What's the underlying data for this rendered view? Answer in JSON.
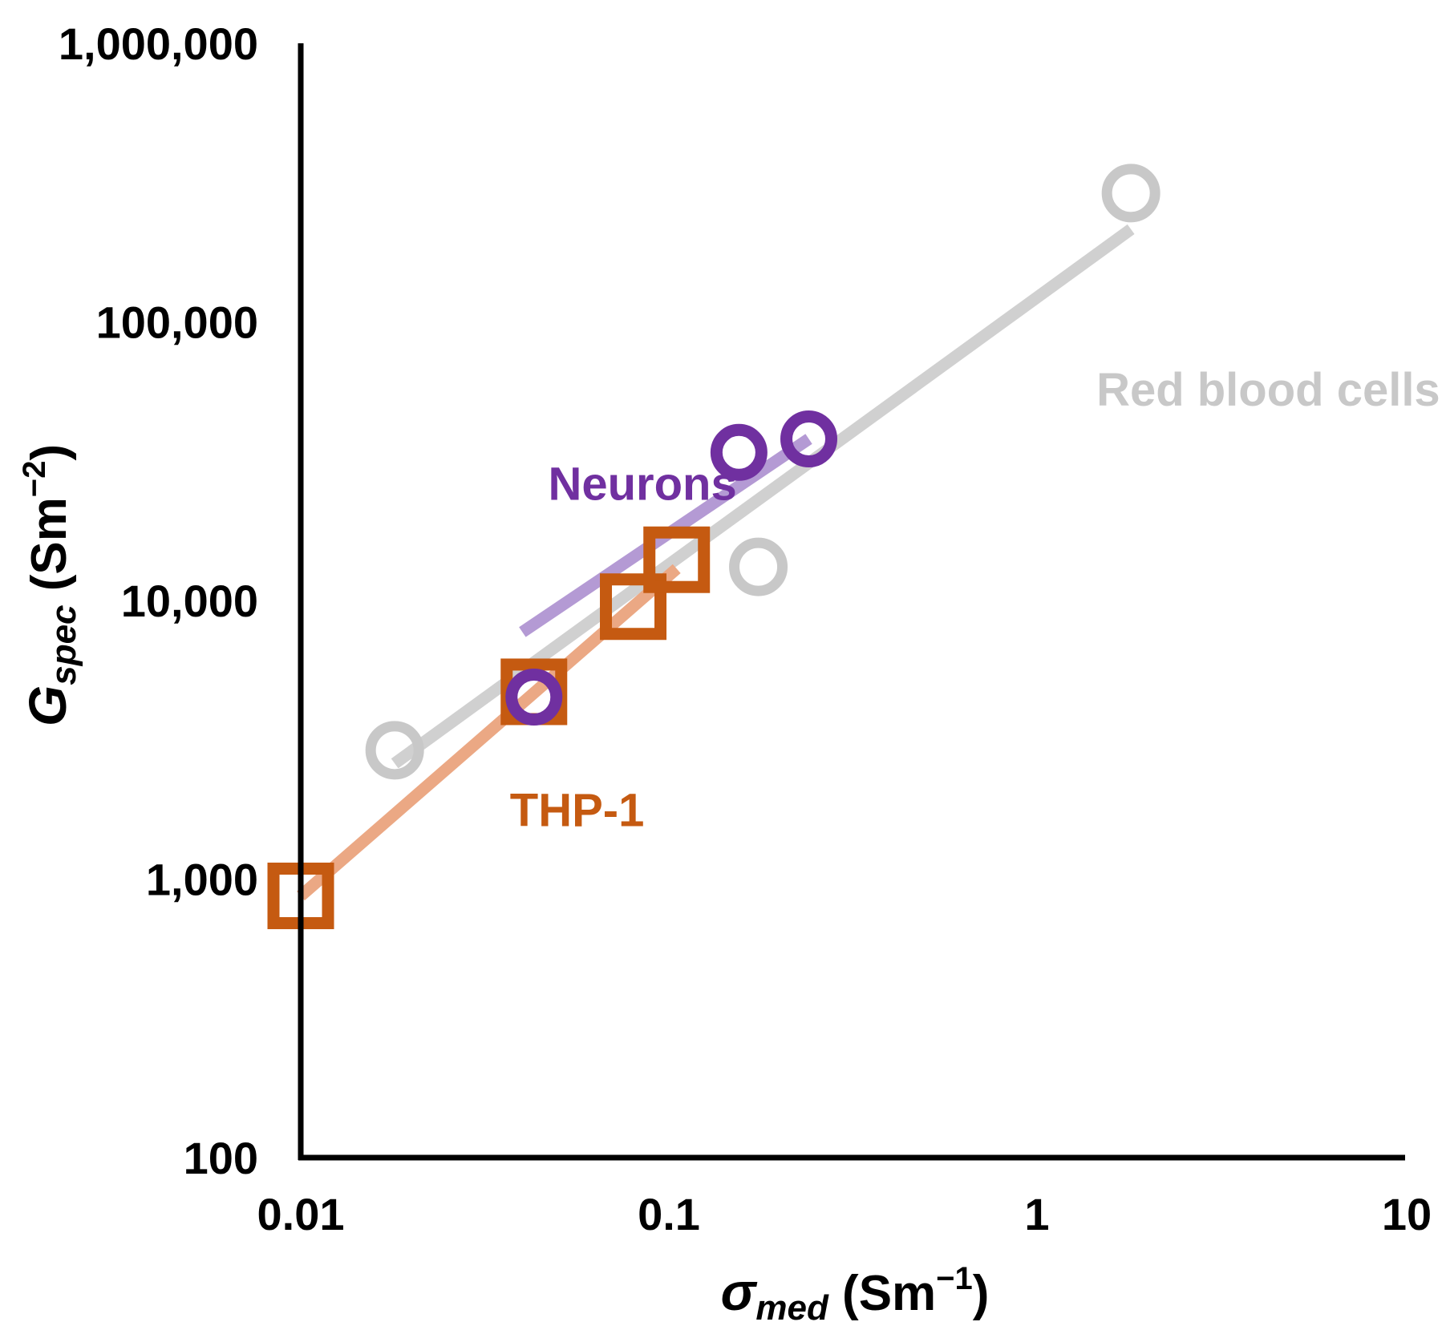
{
  "chart_data": {
    "type": "scatter",
    "x_scale": "log",
    "y_scale": "log",
    "xlim": [
      0.01,
      10
    ],
    "ylim": [
      100,
      1000000
    ],
    "x_ticks": [
      {
        "value": 0.01,
        "label": "0.01"
      },
      {
        "value": 0.1,
        "label": "0.1"
      },
      {
        "value": 1,
        "label": "1"
      },
      {
        "value": 10,
        "label": "10"
      }
    ],
    "y_ticks": [
      {
        "value": 100,
        "label": "100"
      },
      {
        "value": 1000,
        "label": "1,000"
      },
      {
        "value": 10000,
        "label": "10,000"
      },
      {
        "value": 100000,
        "label": "100,000"
      },
      {
        "value": 1000000,
        "label": "1,000,000"
      }
    ],
    "xlabel": {
      "symbol": "σ",
      "sub": "med",
      "unit_pre": " (Sm",
      "sup": "−1",
      "unit_post": ")"
    },
    "ylabel": {
      "symbol": "G",
      "sub": "spec",
      "unit_pre": " (Sm",
      "sup": "−2",
      "unit_post": ")"
    },
    "grid": false,
    "series": [
      {
        "name": "Red blood cells",
        "label": "Red blood cells",
        "color": "#c8c8c8",
        "marker": "circle",
        "points": [
          [
            0.018,
            2900
          ],
          [
            0.175,
            13200
          ],
          [
            1.8,
            290000
          ]
        ],
        "fit": [
          [
            0.018,
            2600
          ],
          [
            1.8,
            215000
          ]
        ],
        "label_at": [
          1.45,
          50000
        ]
      },
      {
        "name": "Neurons",
        "label": "Neurons",
        "color": "#7030a0",
        "fit_color": "#b49ad4",
        "marker": "circle",
        "points": [
          [
            0.043,
            4500
          ],
          [
            0.155,
            34000
          ],
          [
            0.24,
            38000
          ]
        ],
        "fit": [
          [
            0.04,
            7700
          ],
          [
            0.24,
            38000
          ]
        ],
        "label_at": [
          0.047,
          23000
        ]
      },
      {
        "name": "THP-1",
        "label": "THP-1",
        "color": "#c55a11",
        "fit_color": "#eba884",
        "marker": "square",
        "points": [
          [
            0.01,
            870
          ],
          [
            0.043,
            4700
          ],
          [
            0.08,
            9500
          ],
          [
            0.105,
            14000
          ]
        ],
        "fit": [
          [
            0.01,
            870
          ],
          [
            0.105,
            13000
          ]
        ],
        "label_at": [
          0.037,
          1550
        ]
      }
    ]
  }
}
